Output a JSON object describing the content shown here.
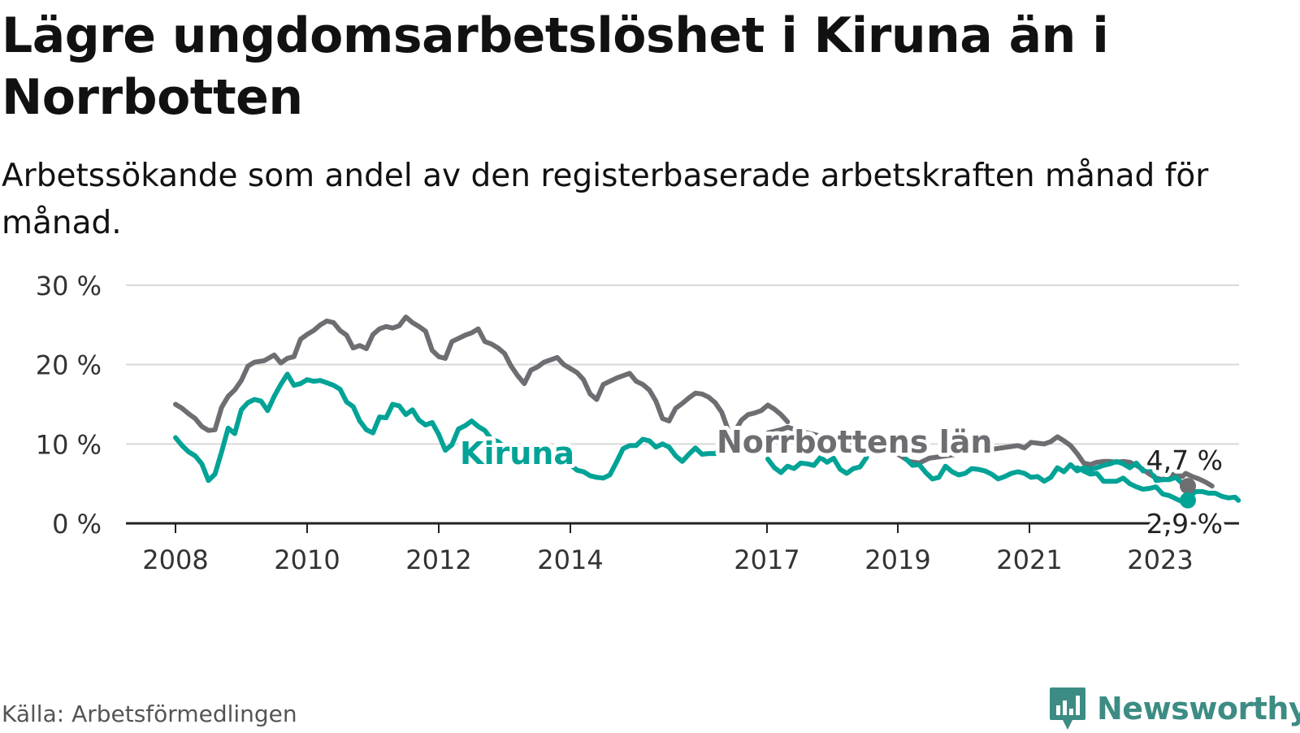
{
  "title": "Lägre ungdomsarbetslöshet i Kiruna än i Norrbotten",
  "subtitle": "Arbetssökande som andel av den registerbaserade arbetskraften månad för månad.",
  "source": "Källa: Arbetsförmedlingen",
  "brand": {
    "name": "Newsworthy",
    "icon": "newsworthy-logo-icon"
  },
  "colors": {
    "kiruna": "#00a396",
    "norrbotten": "#6d6d72",
    "grid": "#d9d9d9",
    "axis": "#222222"
  },
  "chart_data": {
    "type": "line",
    "title": "Lägre ungdomsarbetslöshet i Kiruna än i Norrbotten",
    "xlabel": "",
    "ylabel": "",
    "ylim": [
      0,
      30
    ],
    "yticks": [
      0,
      10,
      20,
      30
    ],
    "ytick_labels": [
      "0 %",
      "10 %",
      "20 %",
      "30 %"
    ],
    "xlim": [
      2008,
      2023.45
    ],
    "xticks": [
      2008,
      2010,
      2012,
      2014,
      2017,
      2019,
      2021,
      2023
    ],
    "xtick_labels": [
      "2008",
      "2010",
      "2012",
      "2014",
      "2017",
      "2019",
      "2021",
      "2023"
    ],
    "grid": true,
    "legend": "inline labels",
    "series": [
      {
        "name": "Norrbottens län",
        "label": "Norrbottens län",
        "color": "#6d6d72",
        "end_label": "4,7 %",
        "points": [
          [
            2008.0,
            15.0
          ],
          [
            2008.1,
            14.5
          ],
          [
            2008.2,
            13.8
          ],
          [
            2008.3,
            13.2
          ],
          [
            2008.4,
            12.2
          ],
          [
            2008.5,
            11.7
          ],
          [
            2008.6,
            11.8
          ],
          [
            2008.7,
            14.6
          ],
          [
            2008.8,
            16.0
          ],
          [
            2008.9,
            16.8
          ],
          [
            2009.0,
            18.0
          ],
          [
            2009.1,
            19.8
          ],
          [
            2009.2,
            20.3
          ],
          [
            2009.35,
            20.5
          ],
          [
            2009.5,
            21.2
          ],
          [
            2009.6,
            20.2
          ],
          [
            2009.7,
            20.8
          ],
          [
            2009.8,
            21.0
          ],
          [
            2009.9,
            23.2
          ],
          [
            2010.0,
            23.8
          ],
          [
            2010.1,
            24.3
          ],
          [
            2010.2,
            25.0
          ],
          [
            2010.3,
            25.5
          ],
          [
            2010.4,
            25.3
          ],
          [
            2010.5,
            24.3
          ],
          [
            2010.6,
            23.7
          ],
          [
            2010.7,
            22.1
          ],
          [
            2010.8,
            22.4
          ],
          [
            2010.9,
            22.0
          ],
          [
            2011.0,
            23.8
          ],
          [
            2011.1,
            24.5
          ],
          [
            2011.2,
            24.8
          ],
          [
            2011.3,
            24.6
          ],
          [
            2011.4,
            24.9
          ],
          [
            2011.5,
            26.0
          ],
          [
            2011.6,
            25.3
          ],
          [
            2011.7,
            24.8
          ],
          [
            2011.8,
            24.2
          ],
          [
            2011.9,
            21.8
          ],
          [
            2012.0,
            21.0
          ],
          [
            2012.1,
            20.8
          ],
          [
            2012.2,
            22.9
          ],
          [
            2012.3,
            23.3
          ],
          [
            2012.4,
            23.7
          ],
          [
            2012.5,
            24.0
          ],
          [
            2012.6,
            24.5
          ],
          [
            2012.7,
            22.9
          ],
          [
            2012.8,
            22.6
          ],
          [
            2012.9,
            22.1
          ],
          [
            2013.0,
            21.4
          ],
          [
            2013.1,
            19.8
          ],
          [
            2013.2,
            18.6
          ],
          [
            2013.3,
            17.6
          ],
          [
            2013.4,
            19.3
          ],
          [
            2013.5,
            19.7
          ],
          [
            2013.6,
            20.3
          ],
          [
            2013.7,
            20.6
          ],
          [
            2013.8,
            20.9
          ],
          [
            2013.9,
            20.0
          ],
          [
            2014.0,
            19.5
          ],
          [
            2014.1,
            19.0
          ],
          [
            2014.2,
            18.1
          ],
          [
            2014.3,
            16.3
          ],
          [
            2014.4,
            15.6
          ],
          [
            2014.5,
            17.5
          ],
          [
            2014.6,
            17.9
          ],
          [
            2014.7,
            18.3
          ],
          [
            2014.8,
            18.6
          ],
          [
            2014.9,
            18.9
          ],
          [
            2015.0,
            17.9
          ],
          [
            2015.1,
            17.5
          ],
          [
            2015.2,
            16.8
          ],
          [
            2015.3,
            15.4
          ],
          [
            2015.4,
            13.2
          ],
          [
            2015.5,
            12.9
          ],
          [
            2015.6,
            14.5
          ],
          [
            2015.7,
            15.1
          ],
          [
            2015.8,
            15.8
          ],
          [
            2015.9,
            16.4
          ],
          [
            2016.0,
            16.3
          ],
          [
            2016.1,
            15.9
          ],
          [
            2016.2,
            15.2
          ],
          [
            2016.3,
            14.0
          ],
          [
            2016.4,
            11.7
          ],
          [
            2016.5,
            11.6
          ],
          [
            2016.6,
            13.0
          ],
          [
            2016.7,
            13.7
          ],
          [
            2016.8,
            13.9
          ],
          [
            2016.9,
            14.2
          ],
          [
            2017.0,
            14.9
          ],
          [
            2017.1,
            14.4
          ],
          [
            2017.2,
            13.7
          ],
          [
            2017.3,
            12.8
          ]
        ],
        "points_b": [
          [
            2017.0,
            11.4
          ],
          [
            2017.2,
            11.8
          ],
          [
            2017.3,
            12.1
          ],
          [
            2017.5,
            11.6
          ],
          [
            2019.0,
            8.6
          ],
          [
            2019.15,
            7.8
          ],
          [
            2019.3,
            7.6
          ],
          [
            2019.45,
            8.2
          ],
          [
            2020.8,
            9.8
          ],
          [
            2020.9,
            9.5
          ],
          [
            2021.0,
            10.2
          ],
          [
            2021.1,
            10.1
          ],
          [
            2021.2,
            10.0
          ],
          [
            2021.3,
            10.3
          ],
          [
            2021.4,
            10.9
          ],
          [
            2021.5,
            10.4
          ],
          [
            2021.6,
            9.8
          ],
          [
            2021.7,
            8.8
          ],
          [
            2021.8,
            7.6
          ],
          [
            2021.9,
            7.4
          ],
          [
            2022.0,
            7.7
          ],
          [
            2022.1,
            7.8
          ],
          [
            2022.2,
            7.8
          ],
          [
            2022.3,
            7.7
          ],
          [
            2022.4,
            7.8
          ],
          [
            2022.5,
            7.7
          ],
          [
            2022.6,
            7.3
          ],
          [
            2022.7,
            6.8
          ],
          [
            2022.8,
            6.2
          ],
          [
            2022.9,
            5.7
          ],
          [
            2023.0,
            5.5
          ],
          [
            2023.1,
            6.1
          ],
          [
            2023.2,
            6.2
          ],
          [
            2023.3,
            5.9
          ],
          [
            2023.35,
            6.3
          ],
          [
            2023.45,
            5.9
          ],
          [
            2023.55,
            5.6
          ],
          [
            2023.65,
            5.2
          ],
          [
            2023.75,
            4.7
          ]
        ]
      },
      {
        "name": "Kiruna",
        "label": "Kiruna",
        "color": "#00a396",
        "end_label": "2,9 %",
        "points": [
          [
            2008.0,
            10.8
          ],
          [
            2008.1,
            9.8
          ],
          [
            2008.2,
            9.0
          ],
          [
            2008.3,
            8.5
          ],
          [
            2008.4,
            7.5
          ],
          [
            2008.5,
            5.4
          ],
          [
            2008.6,
            6.2
          ],
          [
            2008.7,
            9.0
          ],
          [
            2008.8,
            12.0
          ],
          [
            2008.9,
            11.3
          ],
          [
            2009.0,
            14.3
          ],
          [
            2009.1,
            15.2
          ],
          [
            2009.2,
            15.6
          ],
          [
            2009.3,
            15.4
          ],
          [
            2009.4,
            14.2
          ],
          [
            2009.5,
            16.0
          ],
          [
            2009.6,
            17.5
          ],
          [
            2009.7,
            18.8
          ],
          [
            2009.8,
            17.4
          ],
          [
            2009.9,
            17.6
          ],
          [
            2010.0,
            18.1
          ],
          [
            2010.1,
            17.9
          ],
          [
            2010.2,
            18.0
          ],
          [
            2010.3,
            17.7
          ],
          [
            2010.4,
            17.4
          ],
          [
            2010.5,
            16.9
          ],
          [
            2010.6,
            15.3
          ],
          [
            2010.7,
            14.7
          ],
          [
            2010.8,
            12.9
          ],
          [
            2010.9,
            11.8
          ],
          [
            2011.0,
            11.4
          ],
          [
            2011.1,
            13.4
          ],
          [
            2011.2,
            13.3
          ],
          [
            2011.3,
            15.0
          ],
          [
            2011.4,
            14.8
          ],
          [
            2011.5,
            13.7
          ],
          [
            2011.6,
            14.3
          ],
          [
            2011.7,
            13.0
          ],
          [
            2011.8,
            12.4
          ],
          [
            2011.9,
            12.7
          ],
          [
            2012.0,
            11.2
          ],
          [
            2012.1,
            9.2
          ],
          [
            2012.2,
            9.9
          ],
          [
            2012.3,
            11.9
          ],
          [
            2012.4,
            12.3
          ],
          [
            2012.5,
            12.9
          ],
          [
            2012.6,
            12.2
          ],
          [
            2012.7,
            11.7
          ],
          [
            2012.8,
            10.6
          ],
          [
            2012.9,
            10.3
          ],
          [
            2013.0,
            9.6
          ]
        ],
        "points_b": [
          [
            2014.0,
            7.4
          ],
          [
            2014.1,
            6.7
          ],
          [
            2014.2,
            6.5
          ],
          [
            2014.3,
            6.0
          ],
          [
            2014.4,
            5.8
          ],
          [
            2014.5,
            5.7
          ],
          [
            2014.6,
            6.1
          ],
          [
            2014.7,
            7.7
          ],
          [
            2014.8,
            9.4
          ],
          [
            2014.9,
            9.8
          ],
          [
            2015.0,
            9.8
          ],
          [
            2015.1,
            10.6
          ],
          [
            2015.2,
            10.4
          ],
          [
            2015.3,
            9.6
          ],
          [
            2015.4,
            10.0
          ],
          [
            2015.5,
            9.6
          ],
          [
            2015.6,
            8.5
          ],
          [
            2015.7,
            7.8
          ],
          [
            2015.8,
            8.7
          ],
          [
            2015.9,
            9.5
          ],
          [
            2016.0,
            8.7
          ],
          [
            2016.1,
            8.8
          ],
          [
            2016.2,
            8.8
          ],
          [
            2016.3,
            9.5
          ],
          [
            2016.4,
            9.3
          ]
        ],
        "points_c": [
          [
            2017.0,
            8.1
          ],
          [
            2017.1,
            7.0
          ],
          [
            2017.2,
            6.4
          ],
          [
            2017.3,
            7.2
          ],
          [
            2017.4,
            6.9
          ],
          [
            2017.5,
            7.6
          ],
          [
            2017.6,
            7.5
          ],
          [
            2017.7,
            7.3
          ],
          [
            2017.8,
            8.3
          ],
          [
            2017.9,
            7.7
          ],
          [
            2018.0,
            8.2
          ],
          [
            2018.1,
            6.8
          ],
          [
            2018.2,
            6.3
          ],
          [
            2018.3,
            6.9
          ],
          [
            2018.4,
            7.1
          ],
          [
            2018.5,
            8.3
          ]
        ],
        "points_d": [
          [
            2019.1,
            8.1
          ],
          [
            2019.2,
            7.3
          ],
          [
            2019.3,
            7.4
          ],
          [
            2019.4,
            6.4
          ],
          [
            2019.5,
            5.6
          ],
          [
            2019.6,
            5.8
          ],
          [
            2019.7,
            7.2
          ],
          [
            2019.8,
            6.5
          ],
          [
            2019.9,
            6.1
          ],
          [
            2020.0,
            6.3
          ],
          [
            2020.1,
            6.9
          ],
          [
            2020.2,
            6.8
          ],
          [
            2020.3,
            6.6
          ],
          [
            2020.4,
            6.2
          ],
          [
            2020.5,
            5.6
          ],
          [
            2020.6,
            5.9
          ],
          [
            2020.7,
            6.3
          ],
          [
            2020.8,
            6.5
          ],
          [
            2020.9,
            6.3
          ],
          [
            2021.0,
            5.8
          ],
          [
            2021.1,
            5.9
          ],
          [
            2021.2,
            5.3
          ],
          [
            2021.3,
            5.8
          ],
          [
            2021.4,
            7.0
          ],
          [
            2021.5,
            6.5
          ],
          [
            2021.6,
            7.4
          ],
          [
            2021.7,
            6.6
          ],
          [
            2021.8,
            7.0
          ],
          [
            2021.9,
            6.8
          ],
          [
            2022.0,
            7.0
          ],
          [
            2022.1,
            7.3
          ],
          [
            2022.2,
            7.5
          ],
          [
            2022.3,
            7.8
          ],
          [
            2022.4,
            7.5
          ],
          [
            2022.5,
            7.0
          ],
          [
            2022.6,
            7.6
          ],
          [
            2022.7,
            6.6
          ],
          [
            2022.8,
            7.2
          ],
          [
            2022.9,
            5.4
          ],
          [
            2023.0,
            5.5
          ],
          [
            2023.1,
            5.5
          ],
          [
            2023.2,
            5.8
          ],
          [
            2023.3,
            5.0
          ],
          [
            2023.4,
            4.6
          ]
        ],
        "points_e": [
          [
            2021.7,
            7.0
          ],
          [
            2021.8,
            6.6
          ],
          [
            2021.9,
            6.2
          ],
          [
            2022.0,
            6.3
          ],
          [
            2022.1,
            5.3
          ],
          [
            2022.2,
            5.3
          ],
          [
            2022.3,
            5.3
          ],
          [
            2022.4,
            5.7
          ],
          [
            2022.5,
            5.0
          ],
          [
            2022.6,
            4.6
          ],
          [
            2022.7,
            4.3
          ],
          [
            2022.8,
            4.4
          ],
          [
            2022.9,
            4.6
          ],
          [
            2023.0,
            3.7
          ],
          [
            2023.1,
            3.5
          ],
          [
            2023.2,
            3.1
          ],
          [
            2023.3,
            2.7
          ],
          [
            2023.4,
            3.3
          ],
          [
            2023.5,
            4.0
          ],
          [
            2023.6,
            4.0
          ],
          [
            2023.7,
            3.8
          ],
          [
            2023.8,
            3.8
          ],
          [
            2023.9,
            3.4
          ],
          [
            2024.0,
            3.2
          ],
          [
            2024.1,
            3.3
          ],
          [
            2024.15,
            2.9
          ]
        ]
      }
    ]
  }
}
